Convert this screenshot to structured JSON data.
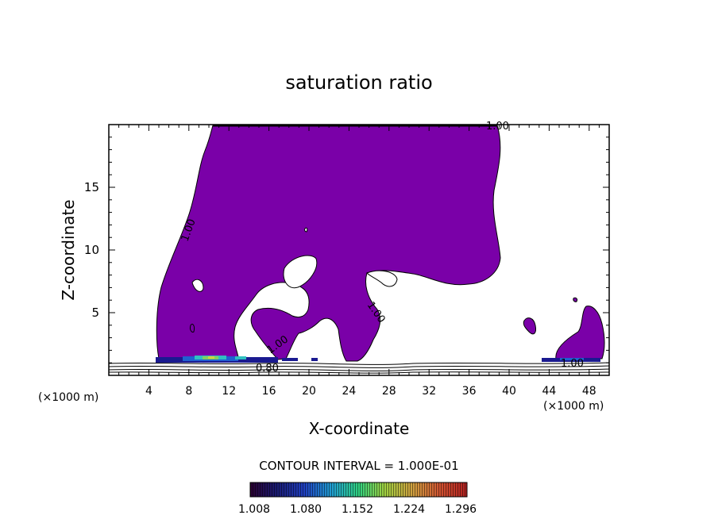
{
  "chart_data": {
    "type": "heatmap",
    "title": "saturation ratio",
    "xlabel": "X-coordinate",
    "ylabel": "Z-coordinate",
    "x_unit": "(×1000 m)",
    "z_unit": "(×1000 m)",
    "xlim": [
      0,
      50
    ],
    "ylim": [
      0,
      20
    ],
    "x_ticks": [
      "4",
      "8",
      "12",
      "16",
      "20",
      "24",
      "28",
      "32",
      "36",
      "40",
      "44",
      "48"
    ],
    "y_ticks": [
      "5",
      "10",
      "15"
    ],
    "contour_labels": [
      "1.00",
      "1.00",
      "1.00",
      "1.00",
      "1.00",
      "0.80"
    ],
    "contour_interval_text": "CONTOUR INTERVAL = 1.000E-01",
    "colorbar": {
      "ticks": [
        "1.008",
        "1.080",
        "1.152",
        "1.224",
        "1.296"
      ],
      "colors": [
        "#2a0030",
        "#1a1a70",
        "#2040c0",
        "#20a0d0",
        "#30d080",
        "#a0d040",
        "#d0a040",
        "#d05030",
        "#b02020"
      ]
    },
    "fill_color": "#7a00a8"
  }
}
